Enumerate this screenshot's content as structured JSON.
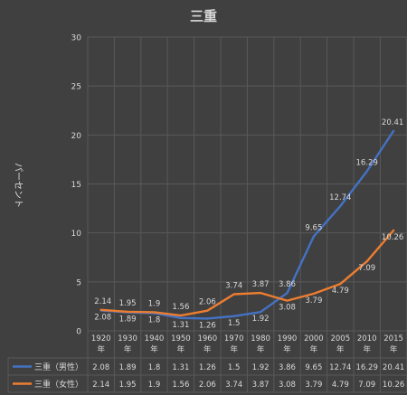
{
  "chart_data": {
    "type": "line",
    "title": "三重",
    "ylabel": "パーセント",
    "categories": [
      "1920年",
      "1930年",
      "1940年",
      "1950年",
      "1960年",
      "1970年",
      "1980年",
      "1990年",
      "2000年",
      "2005年",
      "2010年",
      "2015年"
    ],
    "category_lines": [
      [
        "1920",
        "年"
      ],
      [
        "1930",
        "年"
      ],
      [
        "1940",
        "年"
      ],
      [
        "1950",
        "年"
      ],
      [
        "1960",
        "年"
      ],
      [
        "1970",
        "年"
      ],
      [
        "1980",
        "年"
      ],
      [
        "1990",
        "年"
      ],
      [
        "2000",
        "年"
      ],
      [
        "2005",
        "年"
      ],
      [
        "2010",
        "年"
      ],
      [
        "2015",
        "年"
      ]
    ],
    "ylim": [
      0,
      30
    ],
    "yticks": [
      0,
      5,
      10,
      15,
      20,
      25,
      30
    ],
    "grid": true,
    "legend": "data-table",
    "series": [
      {
        "name": "三重（男性）",
        "color": "#4472c4",
        "values": [
          2.08,
          1.89,
          1.8,
          1.31,
          1.26,
          1.5,
          1.92,
          3.86,
          9.65,
          12.74,
          16.29,
          20.41
        ],
        "labels": [
          "2.08",
          "1.89",
          "1.8",
          "1.31",
          "1.26",
          "1.5",
          "1.92",
          "3.86",
          "9.65",
          "12.74",
          "16.29",
          "20.41"
        ]
      },
      {
        "name": "三重（女性）",
        "color": "#ed7d31",
        "values": [
          2.14,
          1.95,
          1.9,
          1.56,
          2.06,
          3.74,
          3.87,
          3.08,
          3.79,
          4.79,
          7.09,
          10.26
        ],
        "labels": [
          "2.14",
          "1.95",
          "1.9",
          "1.56",
          "2.06",
          "3.74",
          "3.87",
          "3.08",
          "3.79",
          "4.79",
          "7.09",
          "10.26"
        ]
      }
    ]
  }
}
